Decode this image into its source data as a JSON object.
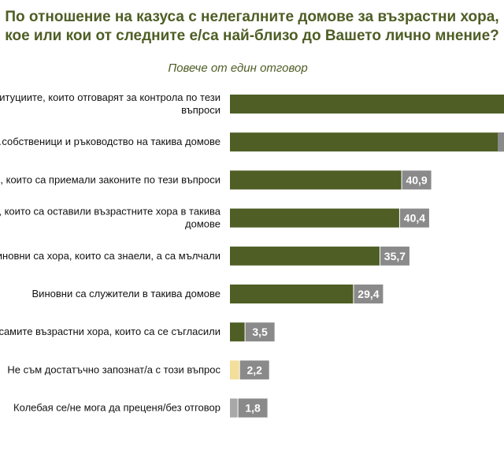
{
  "title_line1": "По отношение на казуса с нелегалните домове за възрастни хора,",
  "title_line2": "кое или кои от следните е/са най-близо до Вашето лично мнение?",
  "subtitle": "Повече от един отговор",
  "colors": {
    "title": "#4e5e25",
    "bar_main": "#4e5e25",
    "bar_unsure": "#f3df99",
    "bar_no_answer": "#a8a8a8",
    "value_box": "#8a8a8a"
  },
  "chart_data": {
    "type": "bar",
    "orientation": "horizontal",
    "title": "По отношение на казуса с нелегалните домове за възрастни хора, кое или кои от следните е/са най-близо до Вашето лично мнение?",
    "subtitle": "Повече от един отговор",
    "categories": [
      [
        "…итуциите, които отговарят за контрола по тези",
        "въпроси"
      ],
      [
        "…собственици и ръководство на такива домове"
      ],
      [
        "…, които са приемали законите по тези въпроси"
      ],
      [
        "…е, които са оставили възрастните хора в такива",
        "домове"
      ],
      [
        "…иновни са хора, които са знаели, а са мълчали"
      ],
      [
        "Виновни са служители в такива домове"
      ],
      [
        "…самите възрастни хора, които са се съгласили"
      ],
      [
        "Не съм достатъчно запознат/а с този въпрос"
      ],
      [
        "Колебая се/не мога да преценя/без отговор"
      ]
    ],
    "values": [
      null,
      null,
      40.9,
      40.4,
      35.7,
      29.4,
      3.5,
      2.2,
      1.8
    ],
    "value_labels": [
      "",
      "",
      "40,9",
      "40,4",
      "35,7",
      "29,4",
      "3,5",
      "2,2",
      "1,8"
    ],
    "bar_colors": [
      "bar_main",
      "bar_main",
      "bar_main",
      "bar_main",
      "bar_main",
      "bar_main",
      "bar_main",
      "bar_unsure",
      "bar_no_answer"
    ],
    "note_values": "first two bars extend past the visible right edge; their values are cropped out of view"
  }
}
